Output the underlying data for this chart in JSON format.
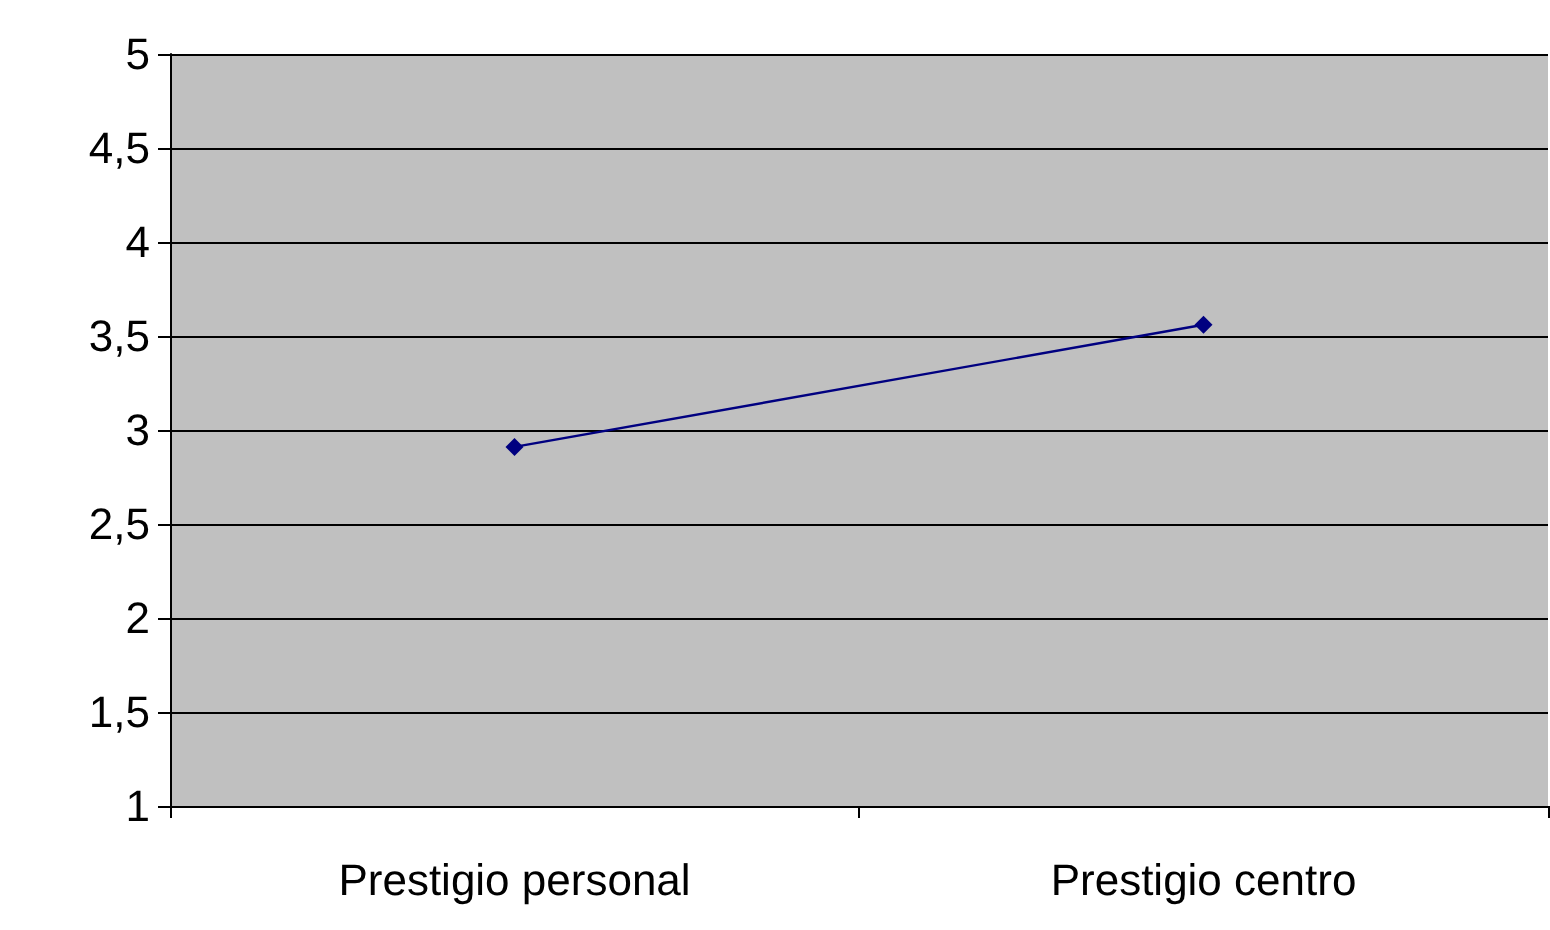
{
  "chart_data": {
    "type": "line",
    "categories": [
      "Prestigio personal",
      "Prestigio centro"
    ],
    "series": [
      {
        "color": "#000080",
        "values": [
          2.91,
          3.56
        ]
      }
    ],
    "ylim": [
      1,
      5
    ],
    "yticks": [
      1,
      {
        "value": 1.5,
        "label": "1,5"
      },
      2,
      {
        "value": 2.5,
        "label": "2,5"
      },
      3,
      {
        "value": 3.5,
        "label": "3,5"
      },
      4,
      {
        "value": 4.5,
        "label": "4,5"
      },
      5
    ],
    "grid": "y",
    "marker": "diamond",
    "line_style": "solid"
  }
}
